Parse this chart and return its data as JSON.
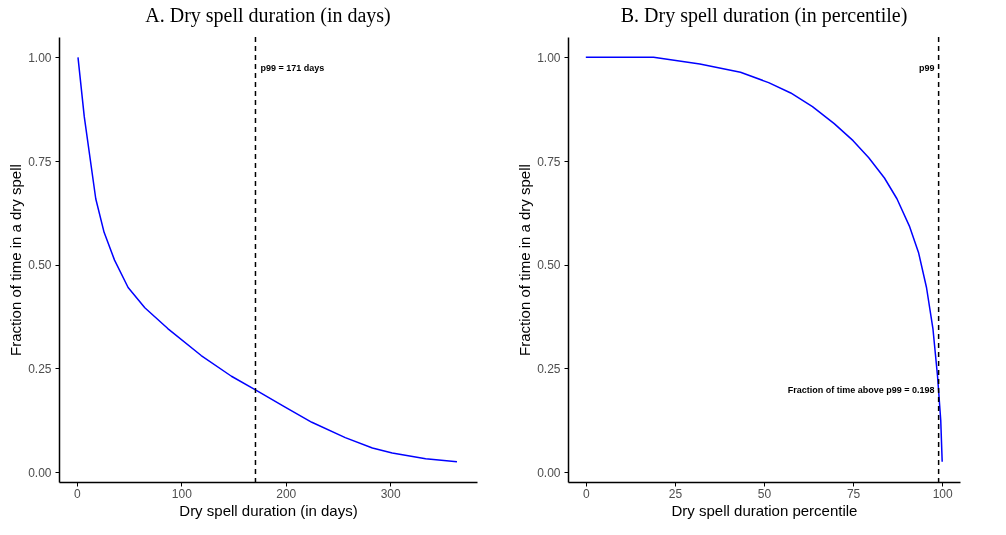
{
  "chart_data": [
    {
      "type": "line",
      "title": "A. Dry spell duration (in days)",
      "xlabel": "Dry spell duration (in days)",
      "ylabel": "Fraction of time in a dry spell",
      "x": [
        1,
        7,
        18,
        26,
        36,
        49,
        65,
        87,
        119,
        148,
        171,
        199,
        225,
        257,
        283,
        302,
        334,
        364
      ],
      "series": [
        {
          "color": "#0000ff",
          "values": [
            1.0,
            0.857,
            0.659,
            0.578,
            0.511,
            0.445,
            0.396,
            0.346,
            0.281,
            0.231,
            0.198,
            0.157,
            0.12,
            0.083,
            0.058,
            0.046,
            0.032,
            0.025
          ]
        }
      ],
      "xlim": [
        -17.2,
        383.2
      ],
      "ylim": [
        -0.024,
        1.049
      ],
      "xticks": [
        0,
        100,
        200,
        300
      ],
      "yticks": [
        {
          "value": 0,
          "label": "0.00"
        },
        {
          "value": 0.25,
          "label": "0.25"
        },
        {
          "value": 0.5,
          "label": "0.50"
        },
        {
          "value": 0.75,
          "label": "0.75"
        },
        {
          "value": 1,
          "label": "1.00"
        }
      ],
      "ref_lines": [
        {
          "axis": "x",
          "value": 171,
          "label": "p99 = 171 days",
          "color": "#000000",
          "line_style": "dashed"
        }
      ],
      "grid": false
    },
    {
      "type": "line",
      "title": "B. Dry spell duration (in percentile)",
      "xlabel": "Dry spell duration percentile",
      "ylabel": "Fraction of time in a dry spell",
      "x": [
        0,
        19,
        32,
        43.4,
        51.3,
        57.5,
        63.6,
        69.7,
        75,
        79.4,
        83.8,
        87.3,
        90.8,
        93.4,
        95.6,
        97.4,
        98.7,
        99.6,
        100
      ],
      "series": [
        {
          "color": "#0000ff",
          "values": [
            1.0,
            1.0,
            0.984,
            0.964,
            0.939,
            0.914,
            0.881,
            0.84,
            0.799,
            0.758,
            0.709,
            0.659,
            0.593,
            0.528,
            0.445,
            0.346,
            0.231,
            0.124,
            0.025
          ]
        }
      ],
      "xlim": [
        -5,
        105
      ],
      "ylim": [
        -0.024,
        1.049
      ],
      "xticks": [
        0,
        25,
        50,
        75,
        100
      ],
      "yticks": [
        {
          "value": 0,
          "label": "0.00"
        },
        {
          "value": 0.25,
          "label": "0.25"
        },
        {
          "value": 0.5,
          "label": "0.50"
        },
        {
          "value": 0.75,
          "label": "0.75"
        },
        {
          "value": 1,
          "label": "1.00"
        }
      ],
      "ref_lines": [
        {
          "axis": "x",
          "value": 99,
          "label": "p99",
          "color": "#000000",
          "line_style": "dashed"
        }
      ],
      "annotations": [
        {
          "text": "Fraction of time above p99 = 0.198",
          "x": 99,
          "y": 0.198
        }
      ],
      "grid": false
    }
  ]
}
